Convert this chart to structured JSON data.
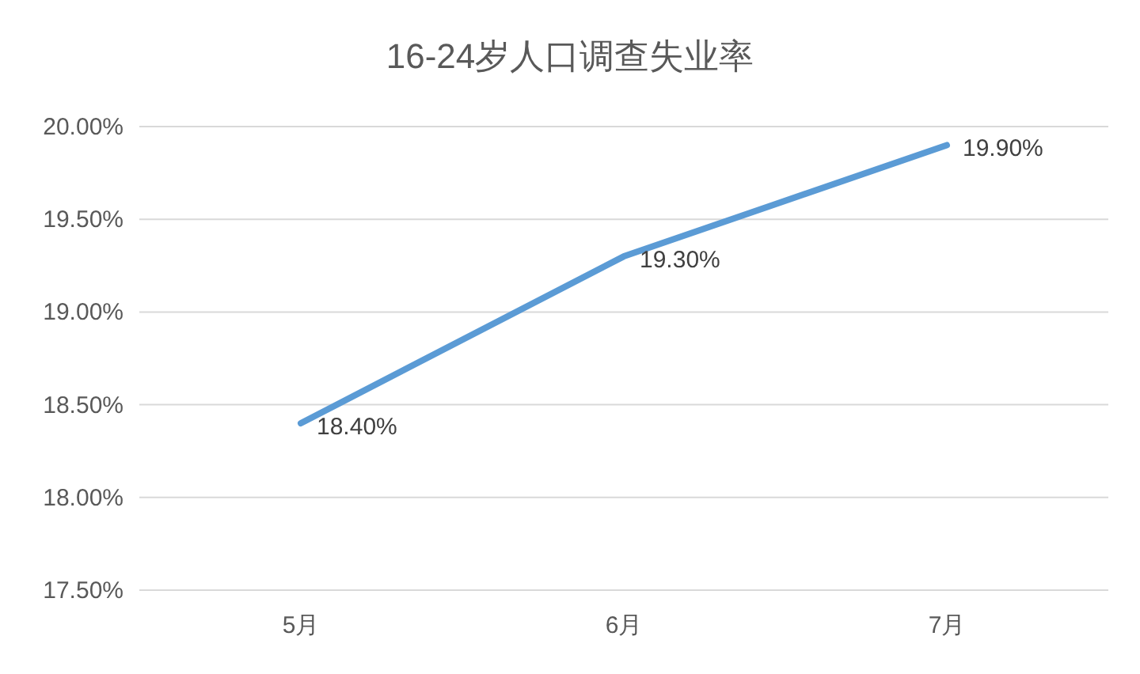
{
  "chart_data": {
    "type": "line",
    "title": "16-24岁人口调查失业率",
    "categories": [
      "5月",
      "6月",
      "7月"
    ],
    "series": [
      {
        "color": "#5b9bd5",
        "values": [
          18.4,
          19.3,
          19.9
        ],
        "value_labels": [
          "18.40%",
          "19.30%",
          "19.90%"
        ]
      }
    ],
    "ylim": [
      17.5,
      20.0
    ],
    "yticks": [
      {
        "value": 17.5,
        "label": "17.50%"
      },
      {
        "value": 18.0,
        "label": "18.00%"
      },
      {
        "value": 18.5,
        "label": "18.50%"
      },
      {
        "value": 19.0,
        "label": "19.00%"
      },
      {
        "value": 19.5,
        "label": "19.50%"
      },
      {
        "value": 20.0,
        "label": "20.00%"
      }
    ],
    "grid": "y",
    "marker": "none",
    "line_style": "solid"
  }
}
